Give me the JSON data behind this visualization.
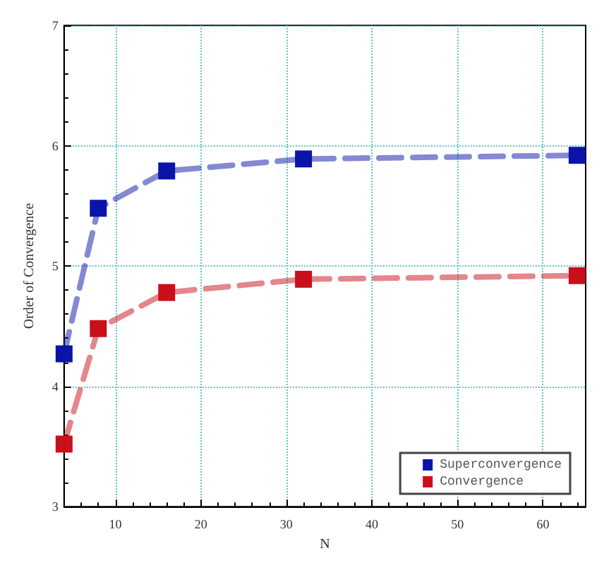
{
  "chart_data": {
    "type": "line",
    "xlabel": "N",
    "ylabel": "Order of Convergence",
    "x": [
      4,
      8,
      16,
      32,
      64
    ],
    "series": [
      {
        "name": "Superconvergence",
        "color": "#0a14a8",
        "values": [
          4.27,
          5.48,
          5.79,
          5.89,
          5.92
        ]
      },
      {
        "name": "Convergence",
        "color": "#c8101a",
        "values": [
          3.52,
          4.48,
          4.78,
          4.89,
          4.92
        ]
      }
    ],
    "xlim": [
      4,
      65
    ],
    "xticks": [
      10,
      20,
      30,
      40,
      50,
      60
    ],
    "ylim": [
      3,
      7
    ],
    "yticks": [
      3,
      4,
      5,
      6,
      7
    ],
    "grid": true,
    "legend": "bottom right",
    "marker": "square",
    "line_style": "dashed"
  }
}
